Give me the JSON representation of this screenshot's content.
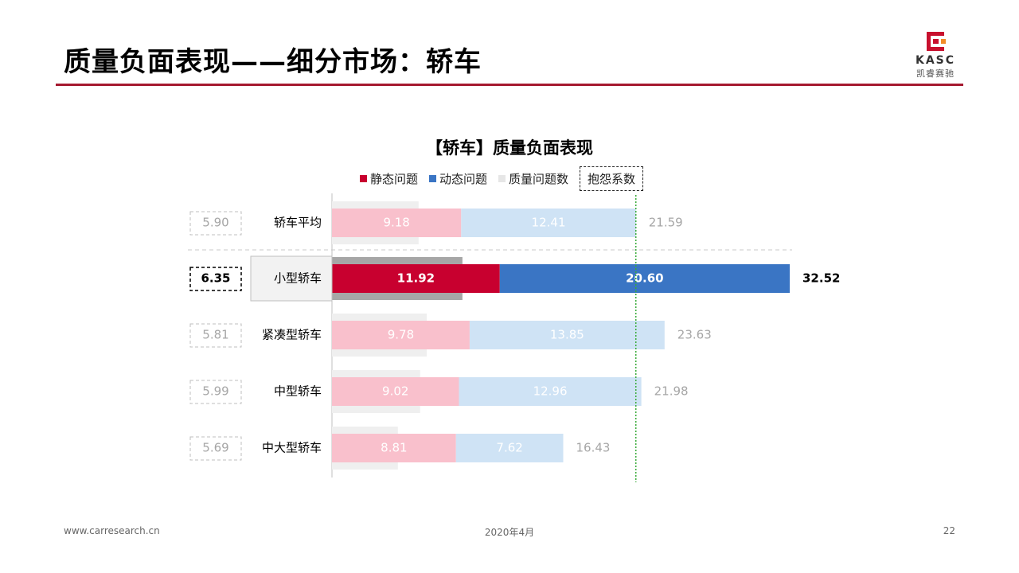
{
  "header": {
    "title": "质量负面表现——细分市场：轿车"
  },
  "logo": {
    "brand": "KASC",
    "cn": "凯睿赛驰"
  },
  "legend": {
    "static": "静态问题",
    "dynamic": "动态问题",
    "total": "质量问题数",
    "complaint": "抱怨系数"
  },
  "colors": {
    "accent": "#a5192f",
    "static_highlight": "#c8002f",
    "dynamic_highlight": "#3a75c4",
    "static_faded": "#f9c0cc",
    "dynamic_faded": "#cfe3f5",
    "reference_line": "#3aab3a"
  },
  "chart_data": {
    "type": "bar",
    "orientation": "horizontal",
    "stacked": true,
    "title": "【轿车】质量负面表现",
    "categories": [
      "轿车平均",
      "小型轿车",
      "紧凑型轿车",
      "中型轿车",
      "中大型轿车"
    ],
    "series": [
      {
        "name": "静态问题",
        "values": [
          9.18,
          11.92,
          9.78,
          9.02,
          8.81
        ]
      },
      {
        "name": "动态问题",
        "values": [
          12.41,
          20.6,
          13.85,
          12.96,
          7.62
        ]
      }
    ],
    "totals": [
      21.59,
      32.52,
      23.63,
      21.98,
      16.43
    ],
    "complaint_coefficient": {
      "name": "抱怨系数",
      "values": [
        5.9,
        6.35,
        5.81,
        5.99,
        5.69
      ],
      "labels": [
        "5.90",
        "6.35",
        "5.81",
        "5.99",
        "5.69"
      ]
    },
    "value_labels": {
      "static": [
        "9.18",
        "11.92",
        "9.78",
        "9.02",
        "8.81"
      ],
      "dynamic": [
        "12.41",
        "20.60",
        "13.85",
        "12.96",
        "7.62"
      ],
      "totals": [
        "21.59",
        "32.52",
        "23.63",
        "21.98",
        "16.43"
      ]
    },
    "highlight_category": "小型轿车",
    "reference_line": {
      "value": 21.59
    },
    "xlim": [
      0,
      32.52
    ],
    "grid": false,
    "legend_position": "top"
  },
  "footer": {
    "website": "www.carresearch.cn",
    "date": "2020年4月",
    "page": "22"
  }
}
